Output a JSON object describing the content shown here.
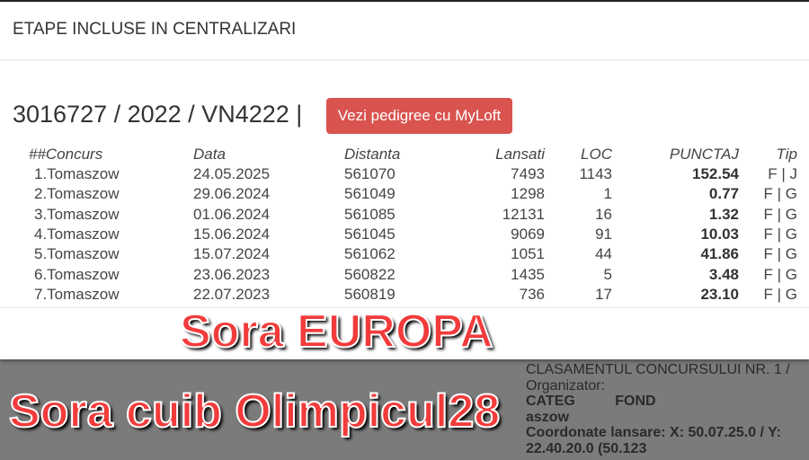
{
  "modal": {
    "title": "ETAPE INCLUSE IN CENTRALIZARI",
    "identifier": "3016727 / 2022 / VN4222 |",
    "pedigree_button": "Vezi pedigree cu MyLoft",
    "button_color": "#d9534f"
  },
  "table": {
    "headers": [
      "##Concurs",
      "Data",
      "Distanta",
      "Lansati",
      "LOC",
      "PUNCTAJ",
      "Tip"
    ],
    "rows": [
      [
        "1.Tomaszow",
        "24.05.2025",
        "561070",
        "7493",
        "1143",
        "152.54",
        "F | J"
      ],
      [
        "2.Tomaszow",
        "29.06.2024",
        "561049",
        "1298",
        "1",
        "0.77",
        "F | G"
      ],
      [
        "3.Tomaszow",
        "01.06.2024",
        "561085",
        "12131",
        "16",
        "1.32",
        "F | G"
      ],
      [
        "4.Tomaszow",
        "15.06.2024",
        "561045",
        "9069",
        "91",
        "10.03",
        "F | G"
      ],
      [
        "5.Tomaszow",
        "15.07.2024",
        "561062",
        "1051",
        "44",
        "41.86",
        "F | G"
      ],
      [
        "6.Tomaszow",
        "23.06.2023",
        "560822",
        "1435",
        "5",
        "3.48",
        "F | G"
      ],
      [
        "7.Tomaszow",
        "22.07.2023",
        "560819",
        "736",
        "17",
        "23.10",
        "F | G"
      ]
    ]
  },
  "background": {
    "line1": "CLASAMENTUL CONCURSULUI NR. 1 / Organizator:",
    "line2": "CATEG          FOND",
    "line3": "aszow",
    "line4": "Coordonate lansare: X: 50.07.25.0 / Y: 22.40.20.0 (50.123"
  },
  "overlay": {
    "caption1": "Sora EUROPA",
    "caption2": "Sora cuib Olimpicul28",
    "caption_color": "#f23b3b"
  }
}
